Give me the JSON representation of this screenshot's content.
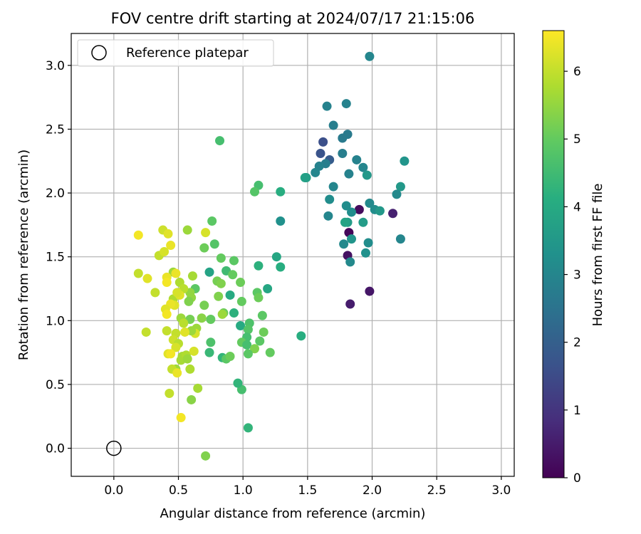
{
  "chart_data": {
    "type": "scatter",
    "title": "FOV centre drift starting at 2024/07/17 21:15:06",
    "xlabel": "Angular distance from reference (arcmin)",
    "ylabel": "Rotation from reference (arcmin)",
    "xlim": [
      -0.33,
      3.1
    ],
    "ylim": [
      -0.22,
      3.25
    ],
    "xticks": [
      "0.0",
      "0.5",
      "1.0",
      "1.5",
      "2.0",
      "2.5",
      "3.0"
    ],
    "yticks": [
      "0.0",
      "0.5",
      "1.0",
      "1.5",
      "2.0",
      "2.5",
      "3.0"
    ],
    "grid": true,
    "legend": {
      "placement": "top-left",
      "entries": [
        "Reference platepar"
      ]
    },
    "reference_point": {
      "x": 0.0,
      "y": 0.0,
      "label": "Reference platepar"
    },
    "colorbar": {
      "label": "Hours from first FF file",
      "range": [
        0,
        6.6
      ],
      "ticks": [
        "0",
        "1",
        "2",
        "3",
        "4",
        "5",
        "6"
      ],
      "colormap": "viridis"
    },
    "series": [
      {
        "values_format": "[x_arcmin, y_arcmin, hours]",
        "values": [
          [
            1.98,
            3.07,
            3.0
          ],
          [
            1.8,
            2.7,
            2.9
          ],
          [
            1.65,
            2.68,
            2.9
          ],
          [
            1.7,
            2.53,
            2.8
          ],
          [
            1.81,
            2.46,
            2.7
          ],
          [
            1.77,
            2.43,
            2.7
          ],
          [
            1.62,
            2.4,
            1.6
          ],
          [
            1.6,
            2.31,
            1.7
          ],
          [
            1.67,
            2.26,
            1.9
          ],
          [
            1.77,
            2.31,
            2.8
          ],
          [
            1.88,
            2.26,
            2.9
          ],
          [
            1.64,
            2.23,
            2.8
          ],
          [
            1.59,
            2.21,
            2.9
          ],
          [
            1.56,
            2.16,
            3.0
          ],
          [
            1.93,
            2.2,
            3.0
          ],
          [
            1.82,
            2.15,
            2.9
          ],
          [
            1.96,
            2.14,
            3.5
          ],
          [
            2.25,
            2.25,
            3.4
          ],
          [
            1.48,
            2.12,
            3.8
          ],
          [
            1.49,
            2.12,
            3.7
          ],
          [
            1.7,
            2.05,
            3.0
          ],
          [
            2.22,
            2.05,
            3.5
          ],
          [
            2.19,
            1.99,
            3.1
          ],
          [
            1.67,
            1.95,
            3.2
          ],
          [
            1.98,
            1.92,
            3.1
          ],
          [
            1.8,
            1.9,
            3.2
          ],
          [
            1.9,
            1.87,
            0.2
          ],
          [
            2.02,
            1.87,
            3.2
          ],
          [
            2.06,
            1.86,
            3.5
          ],
          [
            1.84,
            1.85,
            3.2
          ],
          [
            2.16,
            1.84,
            0.6
          ],
          [
            1.66,
            1.82,
            3.0
          ],
          [
            1.81,
            1.77,
            3.6
          ],
          [
            1.93,
            1.77,
            3.6
          ],
          [
            1.79,
            1.77,
            3.8
          ],
          [
            1.82,
            1.69,
            0.1
          ],
          [
            1.84,
            1.64,
            3.4
          ],
          [
            2.22,
            1.64,
            3.0
          ],
          [
            1.97,
            1.61,
            3.2
          ],
          [
            1.78,
            1.6,
            3.1
          ],
          [
            1.95,
            1.53,
            3.3
          ],
          [
            1.81,
            1.51,
            0.3
          ],
          [
            1.83,
            1.46,
            3.1
          ],
          [
            1.98,
            1.23,
            0.4
          ],
          [
            1.83,
            1.13,
            0.5
          ],
          [
            1.29,
            1.78,
            3.3
          ],
          [
            1.29,
            2.01,
            4.1
          ],
          [
            1.12,
            2.06,
            4.6
          ],
          [
            1.09,
            2.01,
            4.8
          ],
          [
            0.82,
            2.41,
            4.6
          ],
          [
            1.26,
            1.5,
            3.9
          ],
          [
            1.29,
            1.42,
            4.1
          ],
          [
            1.12,
            1.43,
            4.2
          ],
          [
            1.19,
            1.25,
            3.9
          ],
          [
            1.45,
            0.88,
            4.1
          ],
          [
            1.04,
            0.16,
            4.3
          ],
          [
            0.99,
            0.46,
            4.6
          ],
          [
            0.96,
            0.51,
            4.3
          ],
          [
            0.76,
            1.78,
            4.9
          ],
          [
            0.78,
            1.6,
            4.8
          ],
          [
            0.7,
            1.57,
            5.1
          ],
          [
            0.83,
            1.49,
            5.0
          ],
          [
            0.93,
            1.47,
            4.9
          ],
          [
            0.74,
            1.38,
            3.8
          ],
          [
            0.87,
            1.39,
            4.5
          ],
          [
            0.92,
            1.36,
            5.0
          ],
          [
            0.8,
            1.31,
            5.2
          ],
          [
            0.83,
            1.29,
            5.3
          ],
          [
            0.98,
            1.3,
            5.1
          ],
          [
            0.81,
            1.19,
            5.3
          ],
          [
            0.9,
            1.2,
            4.0
          ],
          [
            1.11,
            1.22,
            4.9
          ],
          [
            1.12,
            1.18,
            5.1
          ],
          [
            0.99,
            1.15,
            5.0
          ],
          [
            0.7,
            1.12,
            5.2
          ],
          [
            0.85,
            1.06,
            5.1
          ],
          [
            0.84,
            1.05,
            5.6
          ],
          [
            0.93,
            1.06,
            4.2
          ],
          [
            1.15,
            1.04,
            4.9
          ],
          [
            0.75,
            1.01,
            5.0
          ],
          [
            0.68,
            1.02,
            5.4
          ],
          [
            0.98,
            0.96,
            4.0
          ],
          [
            1.05,
            0.98,
            4.7
          ],
          [
            1.04,
            0.93,
            4.8
          ],
          [
            1.16,
            0.91,
            5.1
          ],
          [
            1.03,
            0.87,
            4.6
          ],
          [
            0.99,
            0.83,
            5.0
          ],
          [
            1.13,
            0.84,
            4.9
          ],
          [
            1.03,
            0.81,
            4.6
          ],
          [
            1.09,
            0.78,
            5.3
          ],
          [
            1.21,
            0.75,
            5.0
          ],
          [
            0.75,
            0.83,
            4.7
          ],
          [
            0.74,
            0.75,
            4.4
          ],
          [
            0.84,
            0.71,
            4.3
          ],
          [
            0.87,
            0.7,
            4.9
          ],
          [
            0.9,
            0.72,
            5.1
          ],
          [
            1.04,
            0.74,
            4.9
          ],
          [
            0.61,
            1.35,
            5.7
          ],
          [
            0.63,
            1.25,
            4.9
          ],
          [
            0.59,
            1.22,
            5.5
          ],
          [
            0.51,
            1.3,
            5.8
          ],
          [
            0.54,
            1.25,
            5.9
          ],
          [
            0.46,
            1.38,
            5.6
          ],
          [
            0.57,
            1.71,
            5.6
          ],
          [
            0.6,
            1.18,
            5.5
          ],
          [
            0.58,
            1.15,
            5.3
          ],
          [
            0.46,
            1.17,
            5.8
          ],
          [
            0.52,
            1.02,
            5.6
          ],
          [
            0.59,
            1.01,
            5.2
          ],
          [
            0.64,
            0.94,
            5.6
          ],
          [
            0.54,
            0.98,
            5.9
          ],
          [
            0.63,
            0.9,
            6.2
          ],
          [
            0.6,
            0.92,
            5.6
          ],
          [
            0.55,
            0.91,
            6.3
          ],
          [
            0.48,
            0.9,
            6.0
          ],
          [
            0.41,
            0.92,
            6.0
          ],
          [
            0.46,
            0.85,
            6.1
          ],
          [
            0.53,
            0.72,
            5.7
          ],
          [
            0.52,
            0.69,
            5.7
          ],
          [
            0.56,
            0.73,
            5.8
          ],
          [
            0.5,
            0.82,
            5.9
          ],
          [
            0.48,
            0.79,
            6.2
          ],
          [
            0.42,
            0.74,
            6.3
          ],
          [
            0.44,
            0.74,
            6.5
          ],
          [
            0.48,
            0.62,
            5.6
          ],
          [
            0.45,
            0.62,
            6.0
          ],
          [
            0.49,
            0.59,
            6.4
          ],
          [
            0.59,
            0.62,
            5.8
          ],
          [
            0.65,
            0.47,
            5.7
          ],
          [
            0.43,
            0.43,
            6.0
          ],
          [
            0.6,
            0.38,
            5.4
          ],
          [
            0.52,
            0.24,
            6.5
          ],
          [
            0.71,
            -0.06,
            5.3
          ],
          [
            0.62,
            0.76,
            6.2
          ],
          [
            0.57,
            0.7,
            5.6
          ],
          [
            0.19,
            1.67,
            6.5
          ],
          [
            0.38,
            1.71,
            6.1
          ],
          [
            0.42,
            1.68,
            6.3
          ],
          [
            0.44,
            1.59,
            6.4
          ],
          [
            0.71,
            1.69,
            6.2
          ],
          [
            0.35,
            1.51,
            6.0
          ],
          [
            0.39,
            1.54,
            6.2
          ],
          [
            0.19,
            1.37,
            6.0
          ],
          [
            0.26,
            1.33,
            6.3
          ],
          [
            0.41,
            1.34,
            6.4
          ],
          [
            0.48,
            1.37,
            6.4
          ],
          [
            0.41,
            1.3,
            6.5
          ],
          [
            0.32,
            1.22,
            6.0
          ],
          [
            0.51,
            1.2,
            6.3
          ],
          [
            0.49,
            1.22,
            6.2
          ],
          [
            0.47,
            1.12,
            6.3
          ],
          [
            0.44,
            1.13,
            6.4
          ],
          [
            0.4,
            1.09,
            6.3
          ],
          [
            0.41,
            1.05,
            6.5
          ],
          [
            0.25,
            0.91,
            6.0
          ]
        ]
      }
    ]
  }
}
